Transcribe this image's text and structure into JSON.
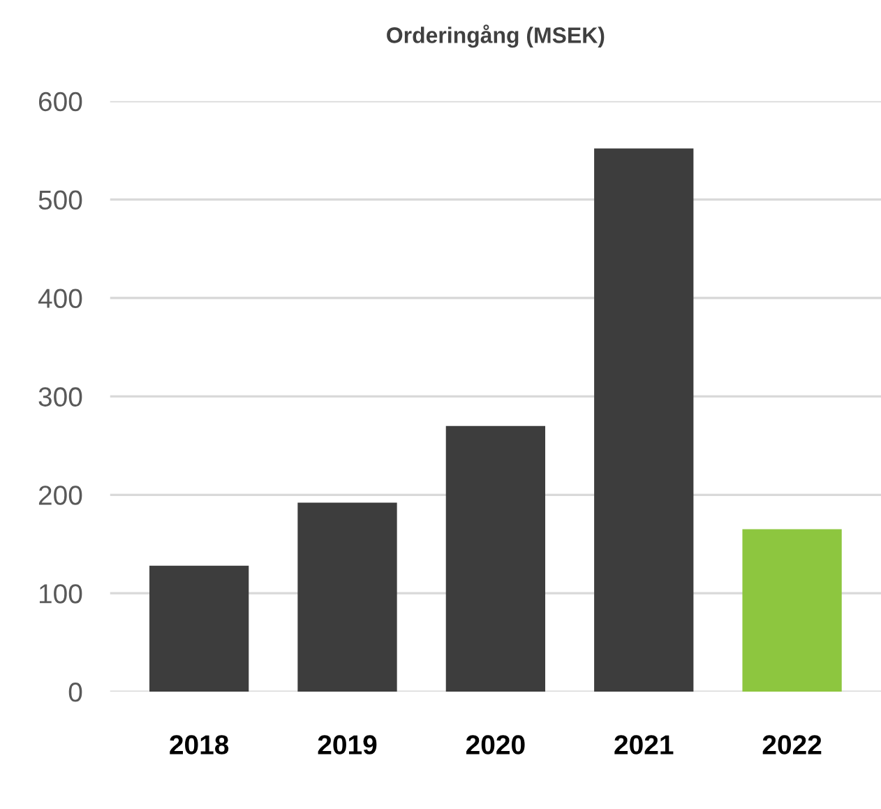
{
  "chart_data": {
    "type": "bar",
    "title": "Orderingång (MSEK)",
    "categories": [
      "2018",
      "2019",
      "2020",
      "2021",
      "2022"
    ],
    "values": [
      128,
      192,
      270,
      552,
      165
    ],
    "colors": [
      "#3d3d3d",
      "#3d3d3d",
      "#3d3d3d",
      "#3d3d3d",
      "#8dc63f"
    ],
    "ylim": [
      0,
      600
    ],
    "yticks": [
      0,
      100,
      200,
      300,
      400,
      500,
      600
    ],
    "grid": "y"
  }
}
